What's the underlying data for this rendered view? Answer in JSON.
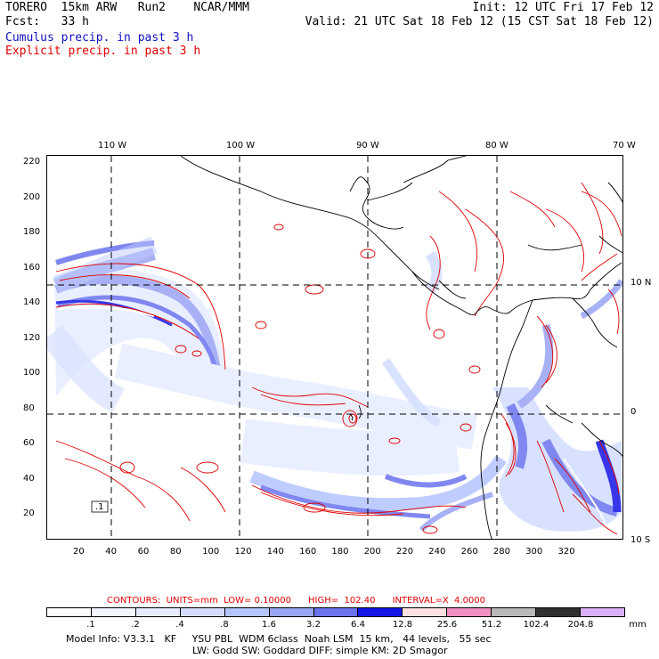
{
  "header": {
    "line1_left": "TORERO  15km ARW   Run2    NCAR/MMM",
    "line1_right": "Init: 12 UTC Fri 17 Feb 12",
    "line2_left": "Fcst:   33 h",
    "line2_right": "Valid: 21 UTC Sat 18 Feb 12 (15 CST Sat 18 Feb 12)",
    "legend_cumulus": "Cumulus precip. in past 3 h",
    "legend_explicit": "Explicit precip. in past 3 h"
  },
  "axes": {
    "lon_labels": [
      "110 W",
      "100 W",
      "90 W",
      "80 W",
      "70 W"
    ],
    "lat_labels": [
      "10 N",
      "0",
      "10 S"
    ],
    "y_ticks": [
      "220",
      "200",
      "180",
      "160",
      "140",
      "120",
      "100",
      "80",
      "60",
      "40",
      "20"
    ],
    "x_ticks": [
      "20",
      "40",
      "60",
      "80",
      "100",
      "120",
      "140",
      "160",
      "180",
      "200",
      "220",
      "240",
      "260",
      "280",
      "300",
      "320"
    ]
  },
  "map_label": ".1",
  "contours": {
    "text": "CONTOURS:  UNITS=mm  LOW= 0.10000      HIGH=  102.40      INTERVAL=X  4.0000"
  },
  "colorbar": {
    "labels": [
      ".1",
      ".2",
      ".4",
      ".8",
      "1.6",
      "3.2",
      "6.4",
      "12.8",
      "25.6",
      "51.2",
      "102.4",
      "204.8"
    ],
    "unit": "mm",
    "colors": [
      "#ffffff",
      "#f4f7ff",
      "#e6edff",
      "#d2dcff",
      "#b4c4ff",
      "#9aa4f4",
      "#6b73ee",
      "#1515e6",
      "#ffe0e0",
      "#f090c0",
      "#b8b8b8",
      "#303030",
      "#d8b0f8"
    ]
  },
  "footer": {
    "line1": "Model Info: V3.3.1   KF     YSU PBL  WDM 6class  Noah LSM  15 km,   44 levels,   55 sec",
    "line2": "LW: Godd SW: Goddard DIFF: simple KM: 2D Smagor"
  }
}
